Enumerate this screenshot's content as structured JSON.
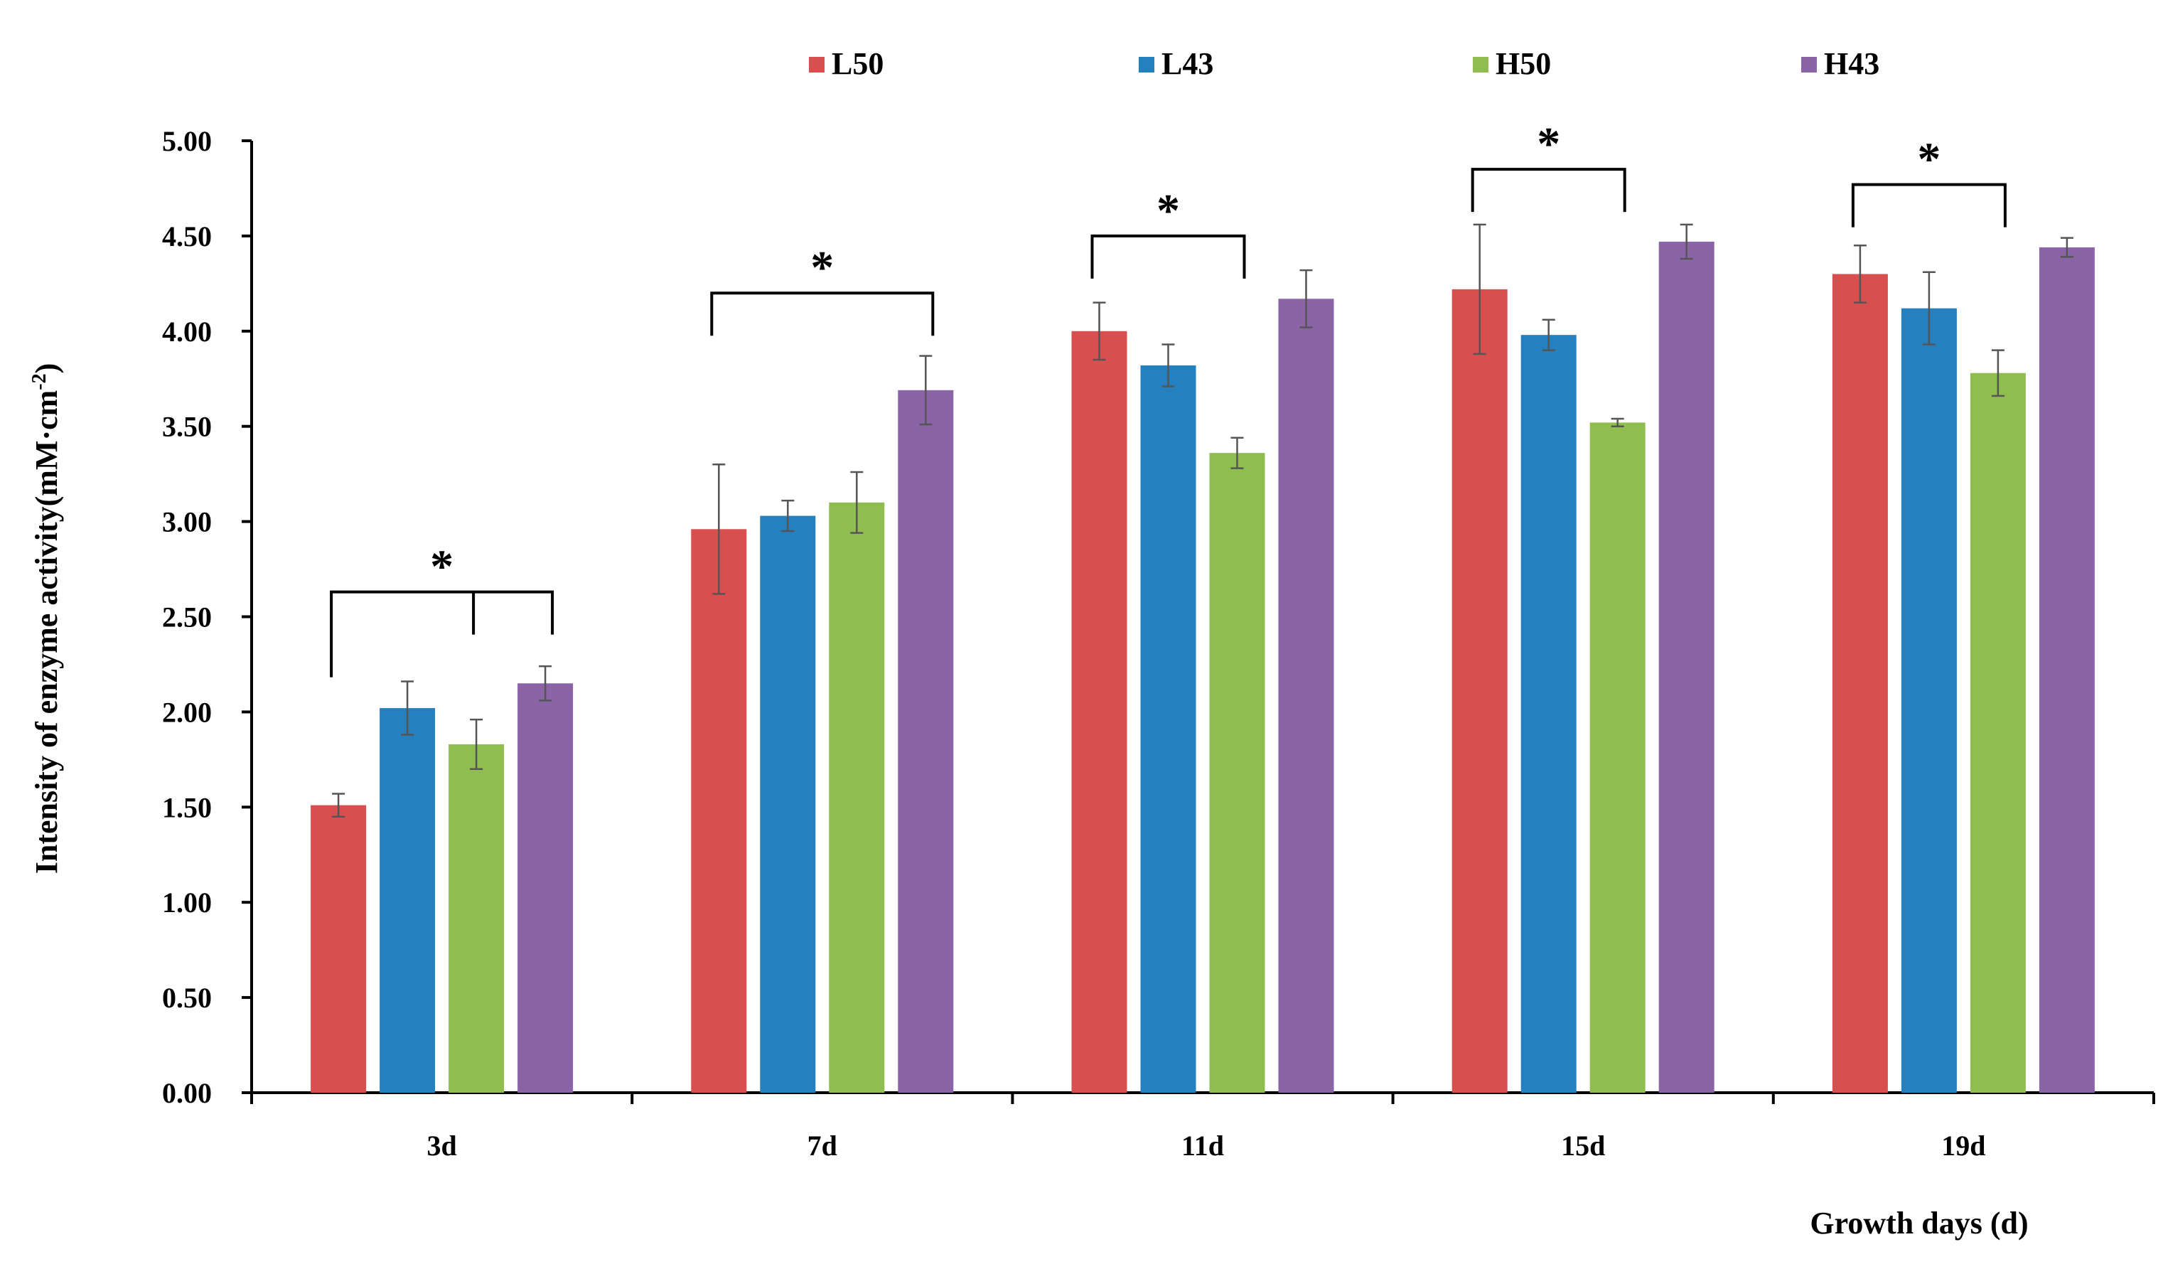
{
  "chart_data": {
    "type": "bar",
    "ylabel_main": "Intensity of enzyme activity(mM·cm",
    "ylabel_sup": "-2",
    "ylabel_close": ")",
    "xlabel": "Growth days (d)",
    "categories": [
      "3d",
      "7d",
      "11d",
      "15d",
      "19d"
    ],
    "ylim": [
      0,
      5
    ],
    "yticks": [
      "0.00",
      "0.50",
      "1.00",
      "1.50",
      "2.00",
      "2.50",
      "3.00",
      "3.50",
      "4.00",
      "4.50",
      "5.00"
    ],
    "ytick_values": [
      0,
      0.5,
      1,
      1.5,
      2,
      2.5,
      3,
      3.5,
      4,
      4.5,
      5
    ],
    "legend_position": "top",
    "series": [
      {
        "name": "L50",
        "color": "#d94f4f",
        "values": [
          1.51,
          2.96,
          4.0,
          4.22,
          4.3
        ],
        "errors": [
          0.06,
          0.34,
          0.15,
          0.34,
          0.15
        ]
      },
      {
        "name": "L43",
        "color": "#2580c0",
        "values": [
          2.02,
          3.03,
          3.82,
          3.98,
          4.12
        ],
        "errors": [
          0.14,
          0.08,
          0.11,
          0.08,
          0.19
        ]
      },
      {
        "name": "H50",
        "color": "#8fbd4f",
        "values": [
          1.83,
          3.1,
          3.36,
          3.52,
          3.78
        ],
        "errors": [
          0.13,
          0.16,
          0.08,
          0.02,
          0.12
        ]
      },
      {
        "name": "H43",
        "color": "#8a64a6",
        "values": [
          2.15,
          3.69,
          4.17,
          4.47,
          4.44
        ],
        "errors": [
          0.09,
          0.18,
          0.15,
          0.09,
          0.05
        ]
      }
    ],
    "significance": [
      {
        "category": 0,
        "from_series": 0,
        "to_series": 3,
        "mid_series": 2,
        "level": 2.63,
        "label": "*"
      },
      {
        "category": 1,
        "from_series": 0,
        "to_series": 3,
        "level": 4.2,
        "label": "*"
      },
      {
        "category": 2,
        "from_series": 0,
        "to_series": 2,
        "level": 4.5,
        "label": "*"
      },
      {
        "category": 3,
        "from_series": 0,
        "to_series": 2,
        "level": 4.85,
        "label": "*"
      },
      {
        "category": 4,
        "from_series": 0,
        "to_series": 2,
        "level": 4.77,
        "label": "*"
      }
    ]
  }
}
